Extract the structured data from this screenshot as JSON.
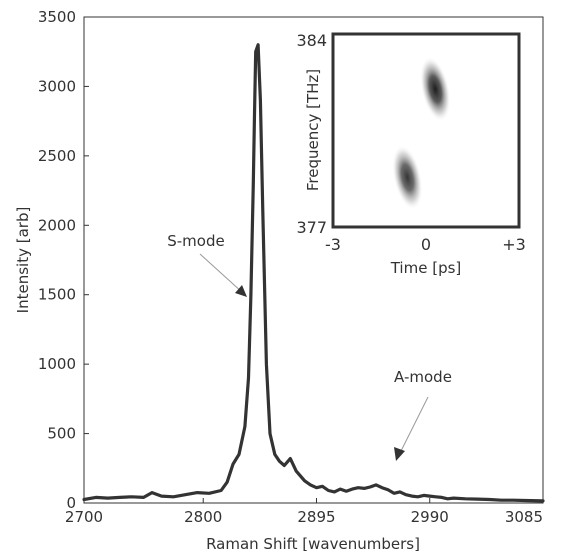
{
  "chart_data": [
    {
      "type": "line",
      "xlabel": "Raman Shift [wavenumbers]",
      "ylabel": "Intensity [arb]",
      "xlim": [
        2700,
        3085
      ],
      "ylim": [
        0,
        3500
      ],
      "x_ticks": [
        2700,
        2800,
        2895,
        2990,
        3085
      ],
      "y_ticks": [
        0,
        500,
        1000,
        1500,
        2000,
        2500,
        3000,
        3500
      ],
      "grid": false,
      "line_color": "#333333",
      "series": [
        {
          "x": [
            2700,
            2710,
            2720,
            2730,
            2740,
            2750,
            2757,
            2765,
            2775,
            2785,
            2795,
            2805,
            2815,
            2820,
            2825,
            2830,
            2835,
            2838,
            2840,
            2842,
            2843,
            2844,
            2846,
            2848,
            2850,
            2853,
            2856,
            2860,
            2864,
            2868,
            2873,
            2878,
            2885,
            2890,
            2895,
            2900,
            2905,
            2910,
            2915,
            2920,
            2925,
            2930,
            2935,
            2940,
            2945,
            2950,
            2955,
            2960,
            2965,
            2970,
            2975,
            2980,
            2985,
            2990,
            2995,
            3000,
            3005,
            3010,
            3020,
            3030,
            3040,
            3050,
            3060,
            3070,
            3085
          ],
          "y": [
            25,
            40,
            35,
            40,
            45,
            40,
            75,
            50,
            45,
            60,
            75,
            70,
            90,
            150,
            280,
            350,
            550,
            900,
            1500,
            2300,
            2800,
            3250,
            3300,
            2900,
            2100,
            1000,
            500,
            350,
            300,
            270,
            320,
            230,
            160,
            130,
            110,
            120,
            90,
            80,
            100,
            85,
            100,
            110,
            105,
            115,
            130,
            110,
            95,
            70,
            80,
            60,
            50,
            45,
            55,
            50,
            45,
            40,
            30,
            35,
            30,
            28,
            25,
            20,
            20,
            18,
            15
          ]
        }
      ],
      "annotations": [
        {
          "text": "S-mode",
          "x": 2828,
          "y": 1800
        },
        {
          "text": "A-mode",
          "x": 2960,
          "y": 700
        }
      ]
    },
    {
      "type": "heatmap",
      "xlabel": "Time [ps]",
      "ylabel": "Frequency [THz]",
      "x_tick_labels": [
        "-3",
        "0",
        "+3"
      ],
      "y_tick_labels": [
        "384",
        "377"
      ],
      "xlim": [
        -3,
        3
      ],
      "ylim": [
        377,
        384
      ],
      "colormap": "white-to-black",
      "blobs": [
        {
          "t": 0.3,
          "f": 382.0,
          "intensity": 0.95
        },
        {
          "t": -0.6,
          "f": 378.8,
          "intensity": 0.85
        }
      ]
    }
  ]
}
